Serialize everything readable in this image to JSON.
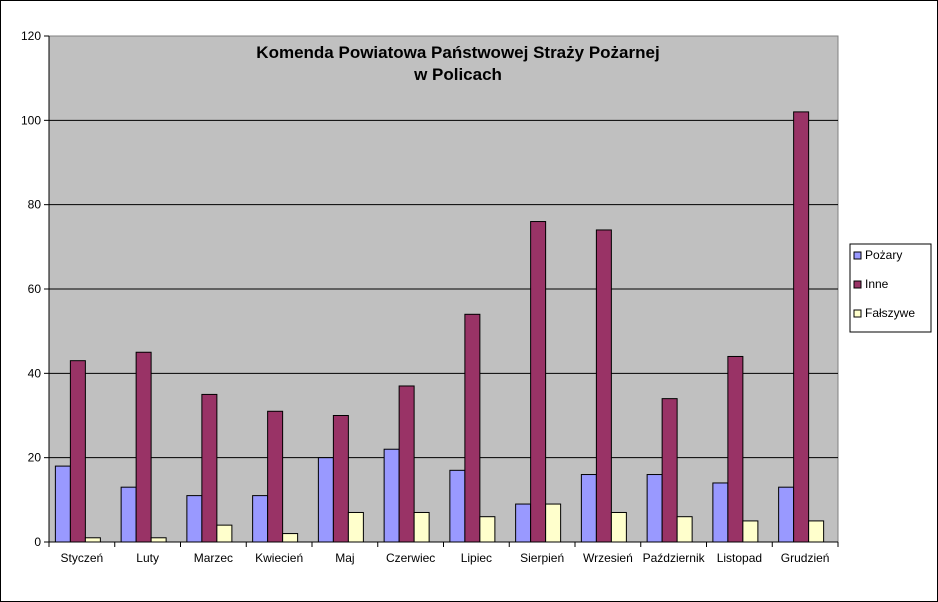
{
  "chart_data": {
    "type": "bar",
    "title": [
      "Komenda Powiatowa Państwowej Straży Pożarnej",
      "w Policach"
    ],
    "xlabel": "",
    "ylabel": "",
    "ylim": [
      0,
      120
    ],
    "yticks": [
      0,
      20,
      40,
      60,
      80,
      100,
      120
    ],
    "grid": true,
    "legend_position": "right",
    "categories": [
      "Styczeń",
      "Luty",
      "Marzec",
      "Kwiecień",
      "Maj",
      "Czerwiec",
      "Lipiec",
      "Sierpień",
      "Wrzesień",
      "Październik",
      "Listopad",
      "Grudzień"
    ],
    "series": [
      {
        "name": "Pożary",
        "color": "#9999ff",
        "values": [
          18,
          13,
          11,
          11,
          20,
          22,
          17,
          9,
          16,
          16,
          14,
          13
        ]
      },
      {
        "name": "Inne",
        "color": "#993366",
        "values": [
          43,
          45,
          35,
          31,
          30,
          37,
          54,
          76,
          74,
          34,
          44,
          102
        ]
      },
      {
        "name": "Fałszywe",
        "color": "#ffffcc",
        "values": [
          1,
          1,
          4,
          2,
          7,
          7,
          6,
          9,
          7,
          6,
          5,
          5
        ]
      }
    ],
    "plot_background": "#c0c0c0"
  }
}
